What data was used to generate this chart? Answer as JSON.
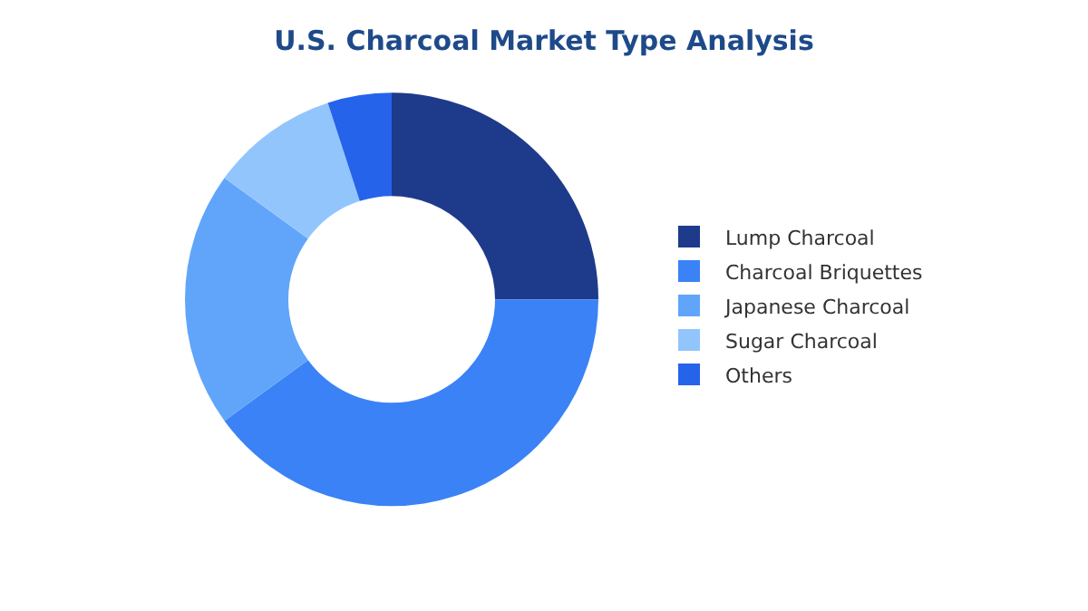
{
  "chart_data": {
    "type": "donut",
    "title": "U.S. Charcoal Market Type Analysis",
    "categories": [
      "Lump Charcoal",
      "Charcoal Briquettes",
      "Japanese Charcoal",
      "Sugar Charcoal",
      "Others"
    ],
    "values": [
      25,
      40,
      20,
      10,
      5
    ],
    "colors": [
      "#1e3a8a",
      "#3b82f6",
      "#60a5fa",
      "#93c5fd",
      "#2563eb"
    ],
    "legend": "right"
  }
}
